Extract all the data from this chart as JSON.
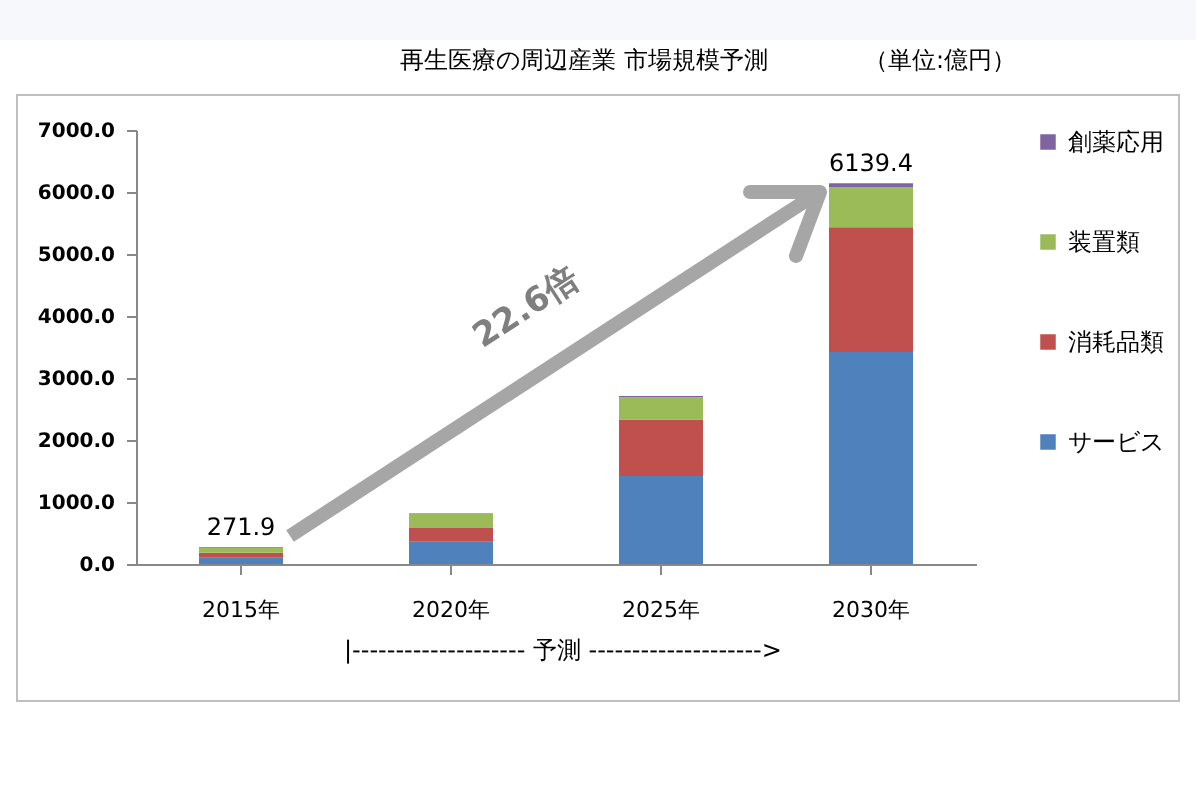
{
  "chart_data": {
    "type": "bar",
    "stacked": true,
    "title": "再生医療の周辺産業  市場規模予測",
    "categories": [
      "2015年",
      "2020年",
      "2025年",
      "2030年"
    ],
    "series": [
      {
        "name": "サービス",
        "color": "#4f81bd",
        "values": [
          100,
          360,
          1420,
          3420
        ]
      },
      {
        "name": "消耗品類",
        "color": "#c0504d",
        "values": [
          80,
          220,
          910,
          2010
        ]
      },
      {
        "name": "装置類",
        "color": "#9bbb59",
        "values": [
          80,
          230,
          360,
          650
        ]
      },
      {
        "name": "創薬応用",
        "color": "#8064a2",
        "values": [
          11.9,
          10,
          20,
          59.4
        ]
      }
    ],
    "ylim": [
      0,
      7000
    ],
    "yticks": [
      {
        "value": 0,
        "label": "0.0"
      },
      {
        "value": 1000,
        "label": "1000.0"
      },
      {
        "value": 2000,
        "label": "2000.0"
      },
      {
        "value": 3000,
        "label": "3000.0"
      },
      {
        "value": 4000,
        "label": "4000.0"
      },
      {
        "value": 5000,
        "label": "5000.0"
      },
      {
        "value": 6000,
        "label": "6000.0"
      },
      {
        "value": 7000,
        "label": "7000.0"
      }
    ],
    "grid": false,
    "legend": "right",
    "totals": [
      "271.9",
      null,
      null,
      "6139.4"
    ],
    "annotations": [
      "（単位:億円）",
      "22.6倍",
      "|--------------------   予測   -------------------->"
    ]
  }
}
